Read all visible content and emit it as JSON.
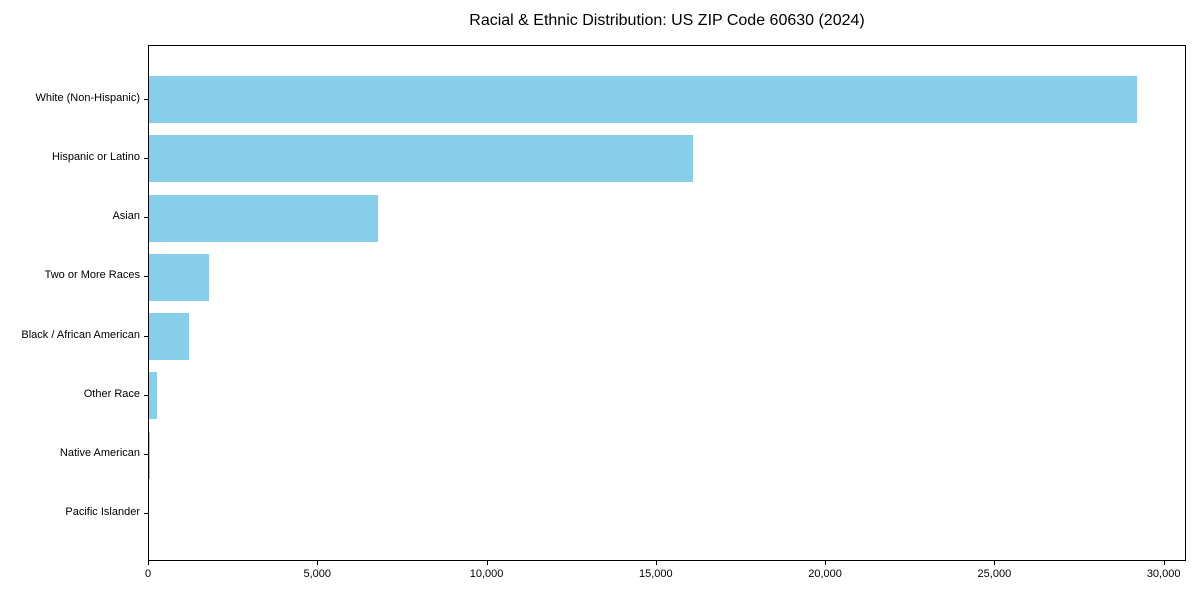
{
  "chart_data": {
    "type": "bar",
    "orientation": "horizontal",
    "title": "Racial & Ethnic Distribution: US ZIP Code 60630 (2024)",
    "categories": [
      "White (Non-Hispanic)",
      "Hispanic or Latino",
      "Asian",
      "Two or More Races",
      "Black / African American",
      "Other Race",
      "Native American",
      "Pacific Islander"
    ],
    "values": [
      29200,
      16100,
      6800,
      1800,
      1200,
      280,
      50,
      10
    ],
    "xlabel": "",
    "ylabel": "",
    "xlim": [
      0,
      30660
    ],
    "x_ticks": [
      0,
      5000,
      10000,
      15000,
      20000,
      25000,
      30000
    ],
    "x_tick_labels": [
      "0",
      "5,000",
      "10,000",
      "15,000",
      "20,000",
      "25,000",
      "30,000"
    ],
    "bar_color": "#87CEEB",
    "spine_color": "#000000",
    "grid": false,
    "legend": null
  }
}
